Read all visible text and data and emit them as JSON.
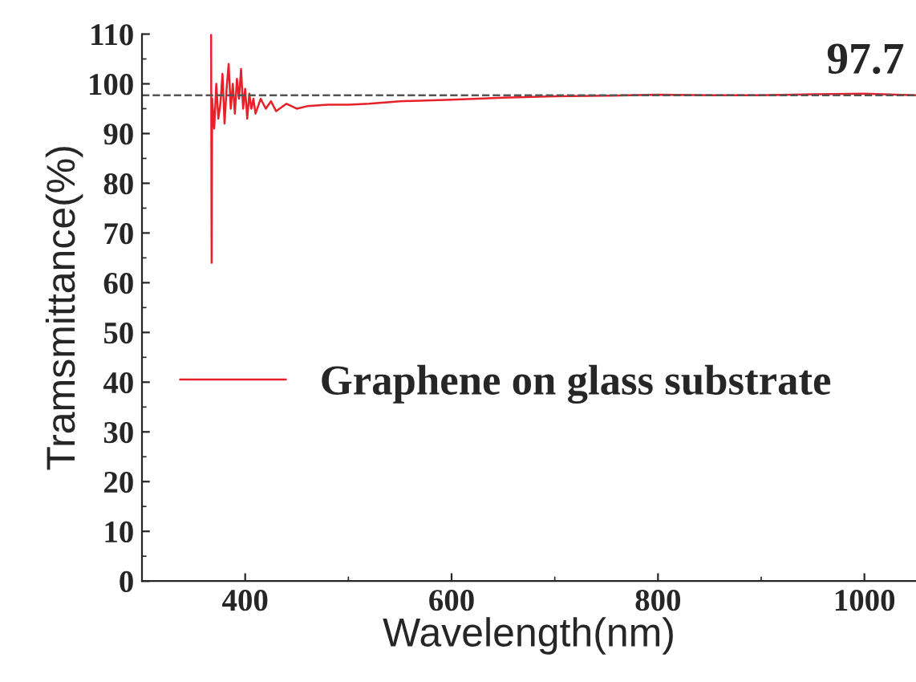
{
  "chart_data": {
    "type": "line",
    "xlabel": "Wavelength(nm)",
    "ylabel": "Tramsmittance(%)",
    "xlim": [
      300,
      1050
    ],
    "xticks": [
      400,
      600,
      800,
      1000
    ],
    "ylim": [
      0,
      110
    ],
    "yticks": [
      0,
      10,
      20,
      30,
      40,
      50,
      60,
      70,
      80,
      90,
      100,
      110
    ],
    "legend": "left",
    "grid": false,
    "series": [
      {
        "name": "Graphene on glass substrate",
        "color": "#e8202a",
        "x": [
          367,
          367.5,
          368,
          370,
          372,
          374,
          376,
          378,
          380,
          382,
          384,
          386,
          388,
          390,
          392,
          394,
          396,
          398,
          400,
          402,
          404,
          406,
          408,
          410,
          415,
          420,
          425,
          430,
          440,
          450,
          460,
          480,
          500,
          520,
          550,
          600,
          650,
          700,
          750,
          800,
          850,
          900,
          950,
          1000,
          1050
        ],
        "values": [
          110,
          64,
          97,
          91,
          100,
          93,
          96,
          102,
          92,
          99,
          104,
          95,
          100,
          94,
          101,
          97,
          103,
          95,
          99,
          93,
          98,
          95,
          97,
          94,
          97,
          95,
          96.5,
          94.5,
          96,
          95,
          95.5,
          95.8,
          95.8,
          96,
          96.5,
          96.8,
          97.2,
          97.5,
          97.6,
          97.8,
          97.7,
          97.7,
          97.9,
          98,
          97.7
        ]
      }
    ],
    "ref_lines": [
      {
        "axis": "y",
        "value": 97.7,
        "label": "97.7",
        "color": "#555555",
        "line_style": "dashed"
      }
    ]
  }
}
